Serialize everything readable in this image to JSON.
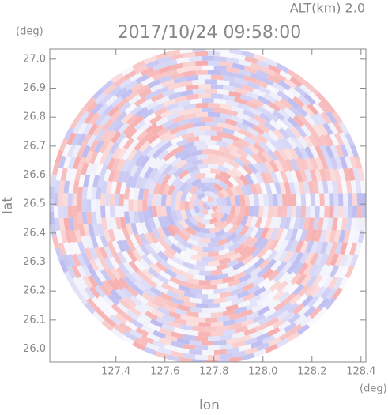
{
  "chart_data": {
    "type": "ppi",
    "title": "2017/10/24 09:58:00",
    "altitude_label": "ALT(km) 2.0",
    "x_label": "lon",
    "y_label": "lat",
    "x_unit": "(deg)",
    "y_unit": "(deg)",
    "xlim": [
      127.13,
      128.42
    ],
    "ylim": [
      25.955,
      27.035
    ],
    "xticks": [
      127.4,
      127.6,
      127.8,
      {
        "value": 128.0,
        "label": "128.0"
      },
      128.2,
      128.4
    ],
    "yticks": [
      {
        "value": 26.0,
        "label": "26.0"
      },
      26.1,
      26.2,
      26.3,
      26.4,
      26.5,
      26.6,
      26.7,
      26.8,
      26.9,
      {
        "value": 27.0,
        "label": "27.0"
      }
    ]
  }
}
